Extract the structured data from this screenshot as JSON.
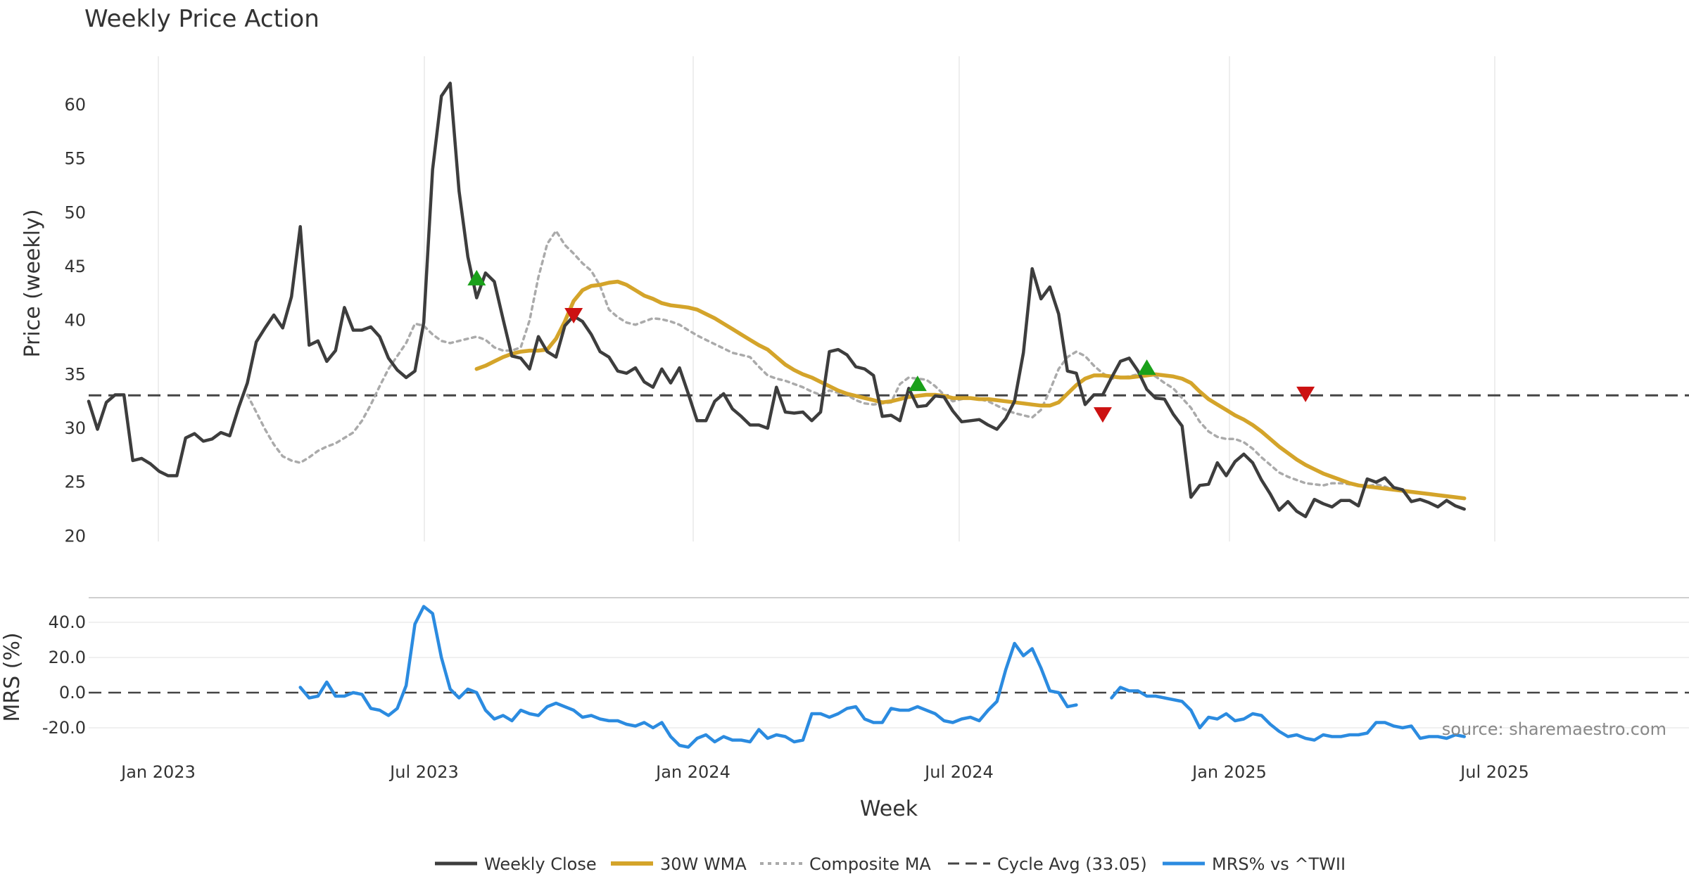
{
  "chart_data": {
    "type": "line",
    "title": "Weekly Price Action",
    "xlabel": "Week",
    "source": "source: sharemaestro.com",
    "x_ticks": [
      "Jan 2023",
      "Jul 2023",
      "Jan 2024",
      "Jul 2024",
      "Jan 2025",
      "Jul 2025"
    ],
    "weeks": 180,
    "colors": {
      "close": "#3d3d3d",
      "wma": "#d4a42a",
      "composite": "#aaaaaa",
      "cycle": "#444444",
      "mrs": "#2b8be0",
      "buy": "#1aa01a",
      "sell": "#cc1111"
    },
    "price_panel": {
      "ylabel": "Price (weekly)",
      "ylim": [
        19.5,
        64.5
      ],
      "y_ticks": [
        20,
        25,
        30,
        35,
        40,
        45,
        50,
        55,
        60
      ],
      "cycle_avg": 33.05,
      "weekly_close": [
        32.5,
        29.9,
        32.4,
        33.1,
        33.1,
        27,
        27.2,
        26.7,
        26,
        25.6,
        25.6,
        29.1,
        29.5,
        28.8,
        29,
        29.6,
        29.3,
        31.9,
        34.2,
        38,
        39.3,
        40.5,
        39.3,
        42.2,
        48.7,
        37.7,
        38.1,
        36.2,
        37.2,
        41.2,
        39.1,
        39.1,
        39.4,
        38.5,
        36.5,
        35.4,
        34.7,
        35.3,
        39.8,
        54,
        60.8,
        62,
        52,
        45.9,
        42.1,
        44.4,
        43.6,
        40.1,
        36.7,
        36.5,
        35.5,
        38.5,
        37.1,
        36.6,
        39.5,
        40.4,
        39.9,
        38.7,
        37.1,
        36.6,
        35.3,
        35.1,
        35.6,
        34.3,
        33.8,
        35.5,
        34.2,
        35.6,
        33.2,
        30.7,
        30.7,
        32.5,
        33.2,
        31.8,
        31.1,
        30.3,
        30.3,
        30,
        33.8,
        31.5,
        31.4,
        31.5,
        30.7,
        31.5,
        37.1,
        37.3,
        36.8,
        35.7,
        35.5,
        34.9,
        31.1,
        31.2,
        30.7,
        33.7,
        32,
        32.1,
        33,
        32.9,
        31.6,
        30.6,
        30.7,
        30.8,
        30.3,
        29.9,
        30.9,
        32.5,
        37,
        44.8,
        42,
        43.1,
        40.6,
        35.3,
        35.1,
        32.2,
        33.1,
        33.1,
        34.7,
        36.2,
        36.5,
        35.3,
        33.6,
        32.8,
        32.7,
        31.3,
        30.2,
        23.6,
        24.7,
        24.8,
        26.8,
        25.6,
        26.9,
        27.6,
        26.8,
        25.2,
        23.9,
        22.4,
        23.2,
        22.3,
        21.8,
        23.4,
        23,
        22.7,
        23.3,
        23.3,
        22.8,
        25.3,
        25,
        25.4,
        24.5,
        24.3,
        23.2,
        23.4,
        23.1,
        22.7,
        23.3,
        22.8,
        22.5
      ],
      "wma_30w": [
        35.5,
        35.8,
        36.2,
        36.6,
        36.9,
        37.1,
        37.2,
        37.2,
        37.3,
        38.3,
        39.9,
        41.8,
        42.8,
        43.2,
        43.3,
        43.5,
        43.6,
        43.3,
        42.8,
        42.3,
        42,
        41.6,
        41.4,
        41.3,
        41.2,
        41,
        40.6,
        40.2,
        39.7,
        39.2,
        38.7,
        38.2,
        37.7,
        37.3,
        36.6,
        35.9,
        35.4,
        35,
        34.7,
        34.3,
        33.9,
        33.5,
        33.2,
        33,
        32.8,
        32.6,
        32.4,
        32.5,
        32.7,
        32.9,
        33,
        33.1,
        33.1,
        33,
        32.8,
        32.8,
        32.8,
        32.7,
        32.7,
        32.6,
        32.5,
        32.4,
        32.3,
        32.2,
        32.1,
        32.1,
        32.4,
        33.2,
        34,
        34.6,
        34.9,
        34.9,
        34.8,
        34.7,
        34.7,
        34.8,
        34.9,
        35,
        34.9,
        34.8,
        34.6,
        34.2,
        33.4,
        32.7,
        32.2,
        31.7,
        31.2,
        30.8,
        30.3,
        29.7,
        29,
        28.3,
        27.7,
        27.1,
        26.6,
        26.2,
        25.8,
        25.5,
        25.2,
        24.9,
        24.7,
        24.6,
        24.5,
        24.4,
        24.3,
        24.2,
        24.1,
        24,
        23.9,
        23.8,
        23.7,
        23.6,
        23.5
      ],
      "composite_ma": [
        33.1,
        31.5,
        29.9,
        28.5,
        27.4,
        27,
        26.8,
        27.3,
        27.9,
        28.3,
        28.6,
        29.1,
        29.6,
        30.7,
        32.2,
        33.9,
        35.5,
        36.7,
        37.9,
        39.7,
        39.5,
        38.7,
        38.1,
        37.9,
        38.1,
        38.3,
        38.5,
        38.2,
        37.5,
        37.2,
        37.2,
        37.5,
        40,
        44,
        47.1,
        48.3,
        47,
        46.2,
        45.3,
        44.6,
        43.2,
        41,
        40.3,
        39.8,
        39.6,
        39.9,
        40.2,
        40.1,
        39.9,
        39.6,
        39.1,
        38.6,
        38.2,
        37.8,
        37.4,
        37,
        36.8,
        36.6,
        35.7,
        34.9,
        34.6,
        34.4,
        34.1,
        33.8,
        33.4,
        33.1,
        33.5,
        33.3,
        33.1,
        32.6,
        32.3,
        32.2,
        32.3,
        32.4,
        34.1,
        34.7,
        34.6,
        34.5,
        33.9,
        33.1,
        32.5,
        32.7,
        32.8,
        32.7,
        32.5,
        32.1,
        31.7,
        31.4,
        31.2,
        31,
        31.7,
        33.5,
        35.5,
        36.6,
        37.1,
        36.7,
        35.8,
        35.1,
        34.6,
        34.7,
        34.8,
        35,
        35.1,
        34.8,
        34.2,
        33.7,
        32.8,
        31.9,
        30.6,
        29.7,
        29.2,
        29,
        29,
        28.7,
        28.1,
        27.3,
        26.6,
        25.9,
        25.5,
        25.2,
        24.9,
        24.8,
        24.7,
        24.9,
        24.9,
        24.8,
        24.7,
        24.6,
        24.8,
        24.6,
        24.3,
        24.2,
        24.1,
        24,
        23.9,
        23.8,
        23.7,
        23.6,
        23.5
      ],
      "buy_signals": [
        {
          "week": 44,
          "price": 43.9
        },
        {
          "week": 94,
          "price": 34.1
        },
        {
          "week": 120,
          "price": 35.6
        }
      ],
      "sell_signals": [
        {
          "week": 55,
          "price": 40.5
        },
        {
          "week": 115,
          "price": 31.3
        },
        {
          "week": 138,
          "price": 33.2
        }
      ]
    },
    "mrs_panel": {
      "ylabel": "MRS (%)",
      "ylim": [
        -30,
        52
      ],
      "y_ticks": [
        "40.0",
        "20.0",
        "0.0",
        "-20.0"
      ],
      "y_tick_values": [
        40,
        20,
        0,
        -20
      ],
      "mrs_a": [
        3,
        -3,
        -2,
        6,
        -2,
        -2,
        0,
        -1,
        -9,
        -10,
        -13,
        -9,
        4,
        39,
        49,
        45,
        20,
        2,
        -3,
        2,
        0,
        -10,
        -15,
        -13,
        -16,
        -10,
        -12,
        -13,
        -8,
        -6,
        -8,
        -10,
        -14,
        -13,
        -15,
        -16,
        -16,
        -18,
        -19,
        -17,
        -20,
        -17,
        -25,
        -30,
        -31,
        -26,
        -24,
        -28,
        -25,
        -27,
        -27,
        -28,
        -21,
        -26,
        -24,
        -25,
        -28,
        -27,
        -12,
        -12,
        -14,
        -12,
        -9,
        -8,
        -15,
        -17,
        -17,
        -9,
        -10,
        -10,
        -8,
        -10,
        -12,
        -16,
        -17,
        -15,
        -14,
        -16,
        -10,
        -5,
        13,
        28,
        21,
        25,
        14,
        1,
        0,
        -8,
        -7
      ],
      "mrs_b": [
        -3,
        3,
        1,
        1,
        -2,
        -2,
        -3,
        -4,
        -5,
        -10,
        -20,
        -14,
        -15,
        -12,
        -16,
        -15,
        -12,
        -13,
        -18,
        -22,
        -25,
        -24,
        -26,
        -27,
        -24,
        -25,
        -25,
        -24,
        -24,
        -23,
        -17,
        -17,
        -19,
        -20,
        -19,
        -26,
        -25,
        -25,
        -26,
        -24,
        -25
      ]
    },
    "legend": [
      "Weekly Close",
      "30W WMA",
      "Composite MA",
      "Cycle Avg (33.05)",
      "MRS% vs ^TWII"
    ]
  }
}
